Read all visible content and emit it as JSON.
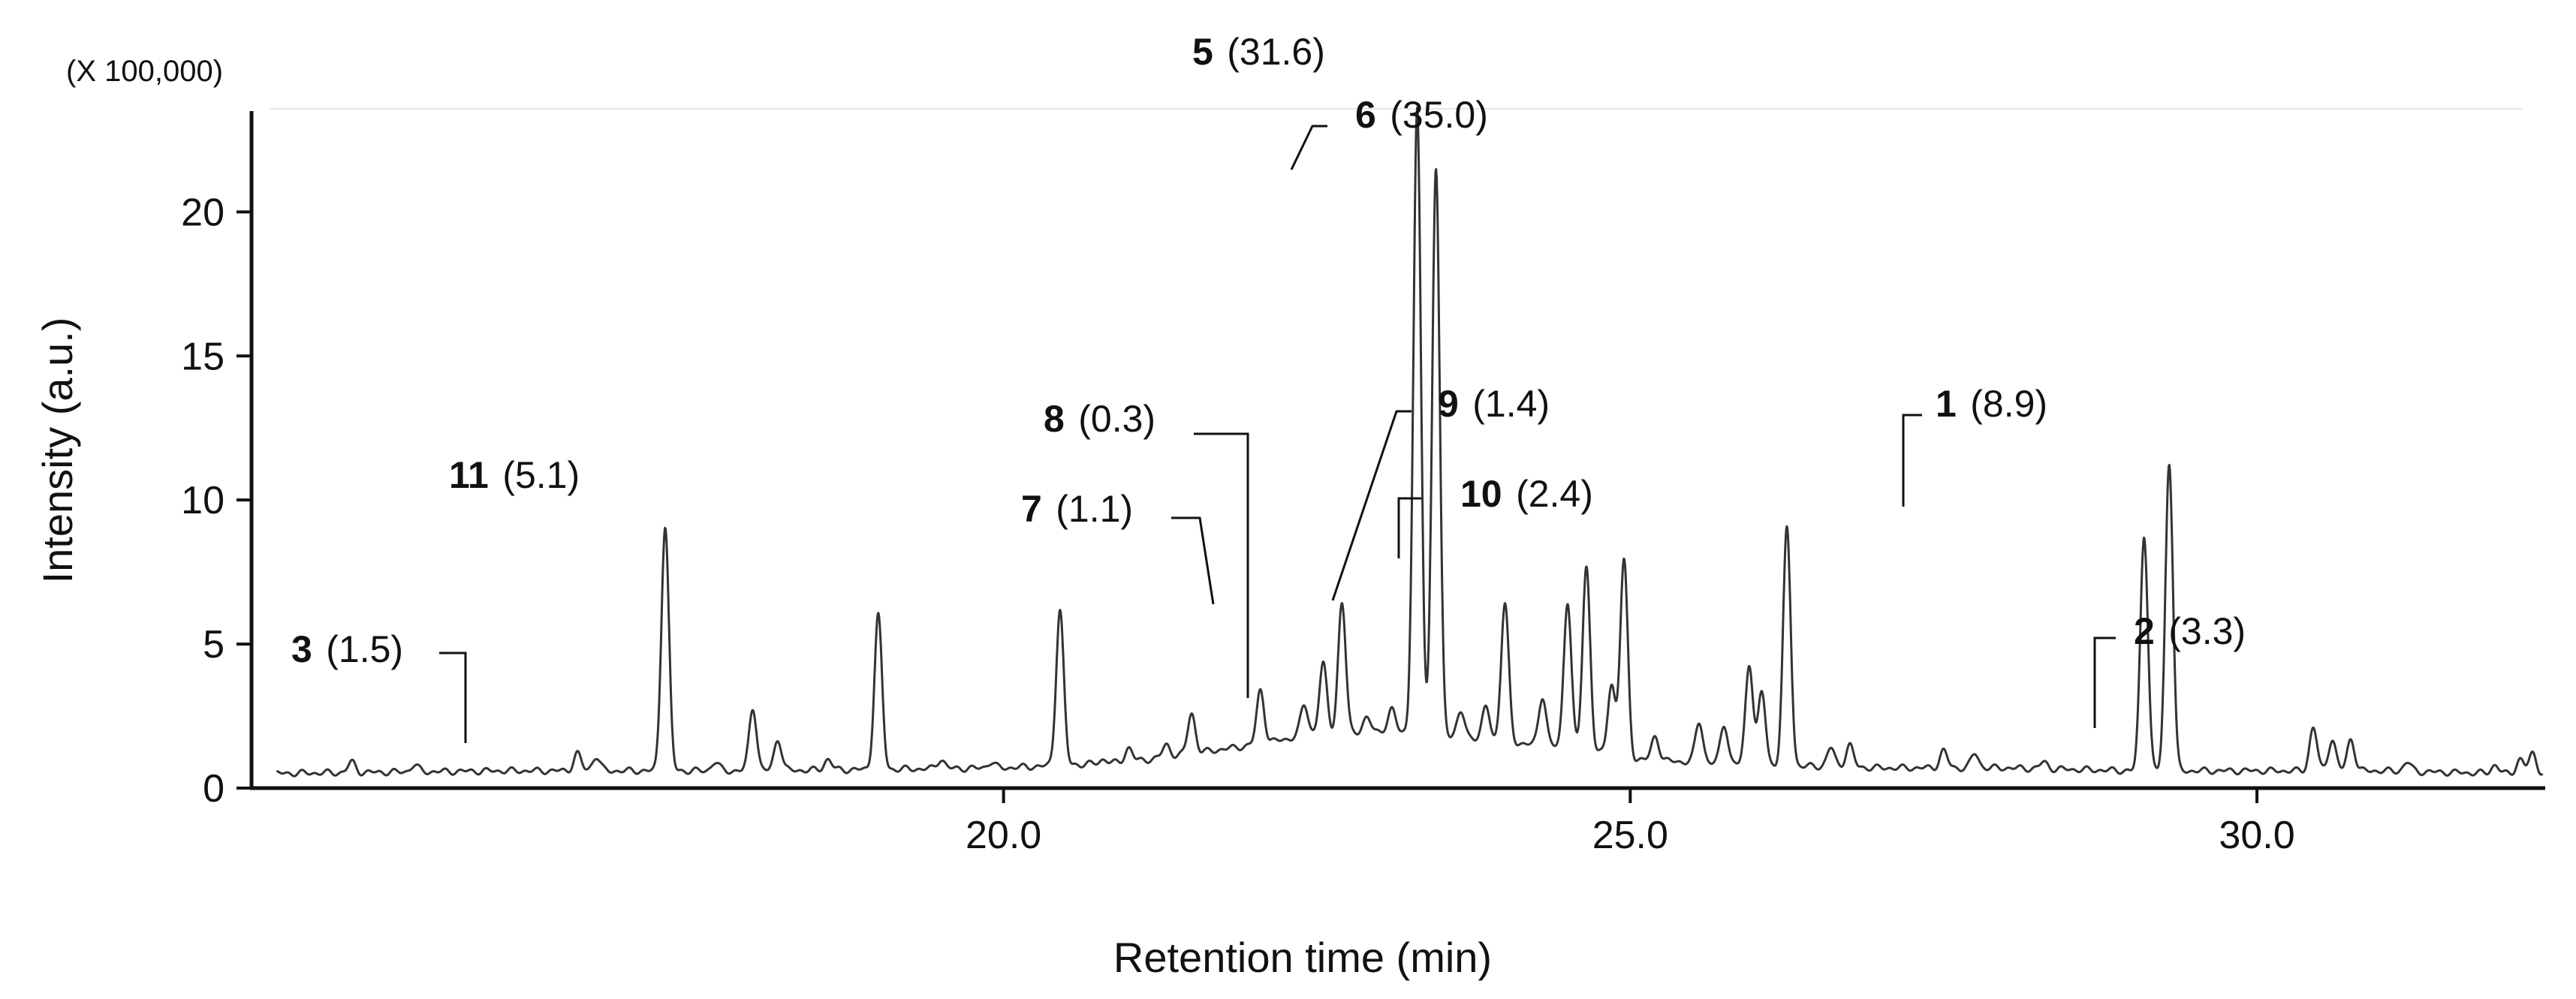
{
  "chart_data": {
    "type": "line",
    "title": "",
    "xlabel": "Retention time (min)",
    "ylabel": "Intensity (a.u.)",
    "y_unit": "(X 100,000)",
    "xlim": [
      14.0,
      32.3
    ],
    "ylim": [
      0,
      23.5
    ],
    "x_ticks": [
      20.0,
      25.0,
      30.0
    ],
    "x_tick_labels": [
      "20.0",
      "25.0",
      "30.0"
    ],
    "y_ticks": [
      0,
      5,
      10,
      15,
      20
    ],
    "y_tick_labels": [
      "0",
      "5",
      "10",
      "15",
      "20"
    ],
    "grid": false,
    "legend": "none",
    "line_color": "#333333",
    "baseline": [
      [
        14.0,
        0.5
      ],
      [
        16.0,
        0.6
      ],
      [
        18.0,
        0.6
      ],
      [
        20.0,
        0.7
      ],
      [
        21.0,
        0.9
      ],
      [
        21.5,
        1.2
      ],
      [
        22.0,
        1.5
      ],
      [
        22.5,
        1.9
      ],
      [
        23.0,
        2.0
      ],
      [
        23.5,
        1.9
      ],
      [
        24.0,
        1.6
      ],
      [
        24.5,
        1.4
      ],
      [
        25.0,
        1.0
      ],
      [
        26.0,
        0.8
      ],
      [
        27.0,
        0.7
      ],
      [
        28.0,
        0.7
      ],
      [
        29.0,
        0.6
      ],
      [
        30.0,
        0.6
      ],
      [
        31.0,
        0.6
      ],
      [
        32.0,
        0.5
      ]
    ],
    "peaks": [
      {
        "x": 14.8,
        "y": 0.9
      },
      {
        "x": 15.3,
        "y": 0.8
      },
      {
        "x": 16.6,
        "y": 1.2
      },
      {
        "x": 16.75,
        "y": 1.1
      },
      {
        "x": 17.3,
        "y": 9.1
      },
      {
        "x": 17.7,
        "y": 0.9
      },
      {
        "x": 18.0,
        "y": 2.8
      },
      {
        "x": 18.2,
        "y": 1.7
      },
      {
        "x": 18.6,
        "y": 1.0
      },
      {
        "x": 19.0,
        "y": 6.0
      },
      {
        "x": 19.5,
        "y": 1.0
      },
      {
        "x": 19.9,
        "y": 0.9
      },
      {
        "x": 20.45,
        "y": 6.2
      },
      {
        "x": 20.8,
        "y": 1.0
      },
      {
        "x": 21.0,
        "y": 1.4
      },
      {
        "x": 21.3,
        "y": 1.5
      },
      {
        "x": 21.5,
        "y": 2.6
      },
      {
        "x": 21.9,
        "y": 1.4
      },
      {
        "x": 22.05,
        "y": 3.4
      },
      {
        "x": 22.4,
        "y": 2.9
      },
      {
        "x": 22.55,
        "y": 4.3
      },
      {
        "x": 22.7,
        "y": 6.4
      },
      {
        "x": 22.9,
        "y": 2.4
      },
      {
        "x": 23.1,
        "y": 2.7
      },
      {
        "x": 23.3,
        "y": 23.5
      },
      {
        "x": 23.45,
        "y": 21.5
      },
      {
        "x": 23.65,
        "y": 2.6
      },
      {
        "x": 23.85,
        "y": 2.8
      },
      {
        "x": 24.0,
        "y": 6.4
      },
      {
        "x": 24.3,
        "y": 3.2
      },
      {
        "x": 24.5,
        "y": 6.5
      },
      {
        "x": 24.65,
        "y": 7.7
      },
      {
        "x": 24.85,
        "y": 3.6
      },
      {
        "x": 24.95,
        "y": 7.9
      },
      {
        "x": 25.2,
        "y": 1.8
      },
      {
        "x": 25.55,
        "y": 2.3
      },
      {
        "x": 25.75,
        "y": 2.2
      },
      {
        "x": 25.95,
        "y": 4.3
      },
      {
        "x": 26.05,
        "y": 3.3
      },
      {
        "x": 26.25,
        "y": 9.0
      },
      {
        "x": 26.6,
        "y": 1.4
      },
      {
        "x": 26.75,
        "y": 1.5
      },
      {
        "x": 27.5,
        "y": 1.3
      },
      {
        "x": 27.75,
        "y": 1.2
      },
      {
        "x": 28.3,
        "y": 0.9
      },
      {
        "x": 29.1,
        "y": 8.8
      },
      {
        "x": 29.3,
        "y": 11.3
      },
      {
        "x": 30.45,
        "y": 2.1
      },
      {
        "x": 30.6,
        "y": 1.7
      },
      {
        "x": 30.75,
        "y": 1.7
      },
      {
        "x": 31.2,
        "y": 0.9
      },
      {
        "x": 31.9,
        "y": 0.8
      },
      {
        "x": 32.1,
        "y": 1.0
      },
      {
        "x": 32.2,
        "y": 1.2
      }
    ],
    "annotations": [
      {
        "num": "1",
        "val": "(8.9)"
      },
      {
        "num": "2",
        "val": "(3.3)"
      },
      {
        "num": "3",
        "val": "(1.5)"
      },
      {
        "num": "5",
        "val": "(31.6)"
      },
      {
        "num": "6",
        "val": "(35.0)"
      },
      {
        "num": "7",
        "val": "(1.1)"
      },
      {
        "num": "8",
        "val": "(0.3)"
      },
      {
        "num": "9",
        "val": "(1.4)"
      },
      {
        "num": "10",
        "val": "(2.4)"
      },
      {
        "num": "11",
        "val": "(5.1)"
      }
    ]
  }
}
